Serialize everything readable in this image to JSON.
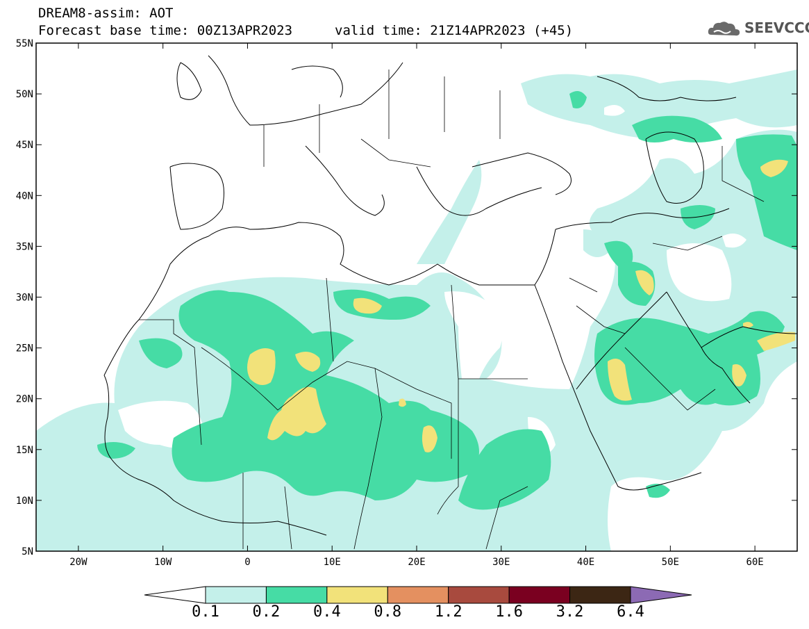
{
  "header": {
    "title": "DREAM8-assim: AOT",
    "forecast_base": "Forecast base time: 00Z13APR2023",
    "valid_time": "valid time: 21Z14APR2023 (+45)",
    "logo_text": "SEEVCCC"
  },
  "map": {
    "lon_range": [
      -25,
      65
    ],
    "lat_range": [
      5,
      55
    ],
    "lon_ticks": [
      "20W",
      "10W",
      "0",
      "10E",
      "20E",
      "30E",
      "40E",
      "50E",
      "60E"
    ],
    "lat_ticks": [
      "55N",
      "50N",
      "45N",
      "40N",
      "35N",
      "30N",
      "25N",
      "20N",
      "15N",
      "10N",
      "5N"
    ]
  },
  "colorbar": {
    "levels": [
      "0.1",
      "0.2",
      "0.4",
      "0.8",
      "1.2",
      "1.6",
      "3.2",
      "6.4"
    ],
    "colors": [
      "#c4f0ea",
      "#46dca5",
      "#f2e27a",
      "#e49060",
      "#a84a3e",
      "#7a0020",
      "#3c2614",
      "#8c6ab4"
    ],
    "over_color": "#8c6ab4",
    "under_color": "#ffffff"
  }
}
